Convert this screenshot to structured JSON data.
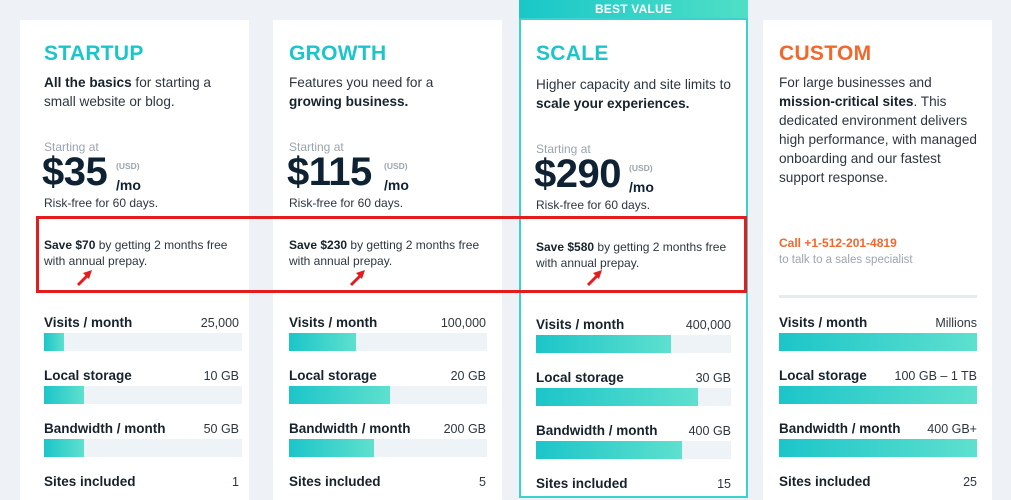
{
  "best_value_label": "BEST VALUE",
  "starting_label": "Starting at",
  "usd_label": "(USD)",
  "per_month_label": "/mo",
  "riskfree_label": "Risk-free for 60 days.",
  "plans": [
    {
      "name": "STARTUP",
      "desc_bold": "All the basics",
      "desc_rest": " for starting a small website or blog.",
      "price": "$35",
      "save_bold": "Save $70",
      "save_rest": " by getting 2 months free with annual prepay.",
      "metrics": [
        {
          "label": "Visits / month",
          "value": "25,000",
          "fill": 0.1
        },
        {
          "label": "Local storage",
          "value": "10 GB",
          "fill": 0.2
        },
        {
          "label": "Bandwidth / month",
          "value": "50 GB",
          "fill": 0.2
        },
        {
          "label": "Sites included",
          "value": "1"
        }
      ]
    },
    {
      "name": "GROWTH",
      "desc_pre": "Features you need for a ",
      "desc_bold": "growing business.",
      "price": "$115",
      "save_bold": "Save $230",
      "save_rest": " by getting 2 months free with annual prepay.",
      "metrics": [
        {
          "label": "Visits / month",
          "value": "100,000",
          "fill": 0.34
        },
        {
          "label": "Local storage",
          "value": "20 GB",
          "fill": 0.51
        },
        {
          "label": "Bandwidth / month",
          "value": "200 GB",
          "fill": 0.43
        },
        {
          "label": "Sites included",
          "value": "5"
        }
      ]
    },
    {
      "name": "SCALE",
      "desc_pre": "Higher capacity and site limits to ",
      "desc_bold": "scale your experiences.",
      "price": "$290",
      "save_bold": "Save $580",
      "save_rest": " by getting 2 months free with annual prepay.",
      "metrics": [
        {
          "label": "Visits / month",
          "value": "400,000",
          "fill": 0.69
        },
        {
          "label": "Local storage",
          "value": "30 GB",
          "fill": 0.83
        },
        {
          "label": "Bandwidth / month",
          "value": "400 GB",
          "fill": 0.75
        },
        {
          "label": "Sites included",
          "value": "15"
        }
      ]
    },
    {
      "name": "CUSTOM",
      "desc_pre": "For large businesses and ",
      "desc_bold": "mission-critical sites",
      "desc_rest": ". This dedicated environment delivers high performance, with managed onboarding and our fastest support response.",
      "call_link": "Call +1-512-201-4819",
      "call_sub": "to talk to a sales specialist",
      "metrics": [
        {
          "label": "Visits / month",
          "value": "Millions",
          "fill": 1.0
        },
        {
          "label": "Local storage",
          "value": "100 GB – 1 TB",
          "fill": 1.0
        },
        {
          "label": "Bandwidth / month",
          "value": "400 GB+",
          "fill": 1.0
        },
        {
          "label": "Sites included",
          "value": "25"
        }
      ]
    }
  ],
  "colors": {
    "accent": "#1cc5c9",
    "custom": "#f5662b",
    "annotation": "#e31d1d"
  }
}
